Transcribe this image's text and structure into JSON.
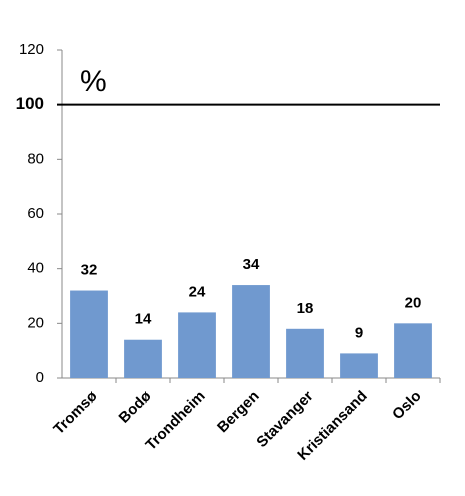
{
  "chart_data": {
    "type": "bar",
    "annotation": "%",
    "categories": [
      "Tromsø",
      "Bodø",
      "Trondheim",
      "Bergen",
      "Stavanger",
      "Kristiansand",
      "Oslo"
    ],
    "values": [
      32,
      14,
      24,
      34,
      18,
      9,
      20
    ],
    "color": "#7099cf",
    "ylim": [
      0,
      120
    ],
    "yticks": [
      0,
      20,
      40,
      60,
      80,
      100,
      120
    ],
    "reference_line": 100,
    "grid": false
  }
}
